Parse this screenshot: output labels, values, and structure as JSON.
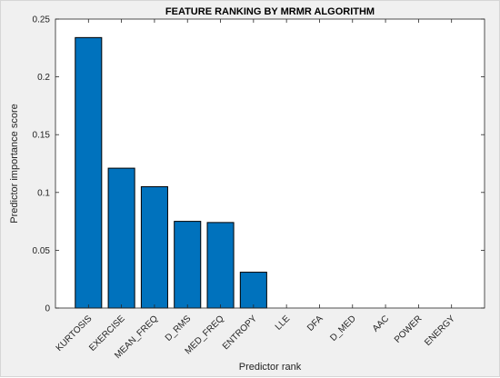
{
  "chart_data": {
    "type": "bar",
    "title": "FEATURE RANKING BY MRMR ALGORITHM",
    "xlabel": "Predictor rank",
    "ylabel": "Predictor importance score",
    "categories": [
      "KURTOSIS",
      "EXERCISE",
      "MEAN_FREQ",
      "D_RMS",
      "MED_FREQ",
      "ENTROPY",
      "LLE",
      "DFA",
      "D_MED",
      "AAC",
      "POWER",
      "ENERGY"
    ],
    "values": [
      0.234,
      0.121,
      0.105,
      0.075,
      0.074,
      0.031,
      0,
      0,
      0,
      0,
      0,
      0
    ],
    "ylim": [
      0,
      0.25
    ],
    "yticks": [
      0,
      0.05,
      0.1,
      0.15,
      0.2,
      0.25
    ],
    "ytick_labels": [
      "0",
      "0.05",
      "0.1",
      "0.15",
      "0.2",
      "0.25"
    ],
    "grid": false,
    "bar_color": "#0072BD",
    "background_color": "#f0f0f0",
    "axes_color": "#ffffff"
  }
}
